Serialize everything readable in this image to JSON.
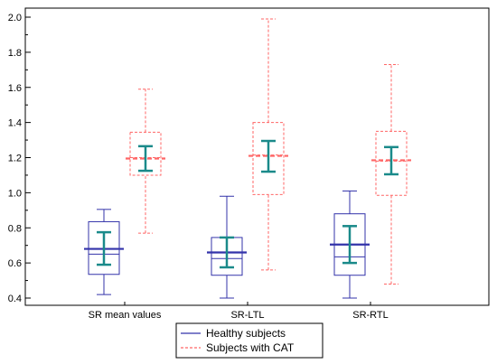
{
  "chart_data": {
    "type": "box",
    "categories": [
      "SR mean values",
      "SR-LTL",
      "SR-RTL"
    ],
    "ylim": [
      0.4,
      2.0
    ],
    "yticks": [
      "0.4",
      "0.6",
      "0.8",
      "1.0",
      "1.2",
      "1.4",
      "1.6",
      "1.8",
      "2.0"
    ],
    "legend_position": "bottom-center",
    "series": [
      {
        "name": "Healthy subjects",
        "color": "#3333aa",
        "line_style": "solid",
        "boxes": [
          {
            "min": 0.42,
            "q1": 0.535,
            "median": 0.65,
            "q3": 0.835,
            "max": 0.905,
            "mean": 0.68,
            "ci_low": 0.59,
            "ci_high": 0.775
          },
          {
            "min": 0.4,
            "q1": 0.53,
            "median": 0.625,
            "q3": 0.745,
            "max": 0.98,
            "mean": 0.66,
            "ci_low": 0.575,
            "ci_high": 0.745
          },
          {
            "min": 0.4,
            "q1": 0.53,
            "median": 0.635,
            "q3": 0.88,
            "max": 1.01,
            "mean": 0.705,
            "ci_low": 0.6,
            "ci_high": 0.81
          }
        ]
      },
      {
        "name": "Subjects with CAT",
        "color": "#ff6666",
        "line_style": "dashed",
        "boxes": [
          {
            "min": 0.77,
            "q1": 1.1,
            "median": 1.2,
            "q3": 1.345,
            "max": 1.59,
            "mean": 1.195,
            "ci_low": 1.125,
            "ci_high": 1.265
          },
          {
            "min": 0.56,
            "q1": 0.99,
            "median": 1.215,
            "q3": 1.4,
            "max": 1.99,
            "mean": 1.21,
            "ci_low": 1.12,
            "ci_high": 1.295
          },
          {
            "min": 0.48,
            "q1": 0.985,
            "median": 1.18,
            "q3": 1.35,
            "max": 1.73,
            "mean": 1.185,
            "ci_low": 1.105,
            "ci_high": 1.26
          }
        ]
      }
    ],
    "ci_color": "#1a8a8a"
  }
}
